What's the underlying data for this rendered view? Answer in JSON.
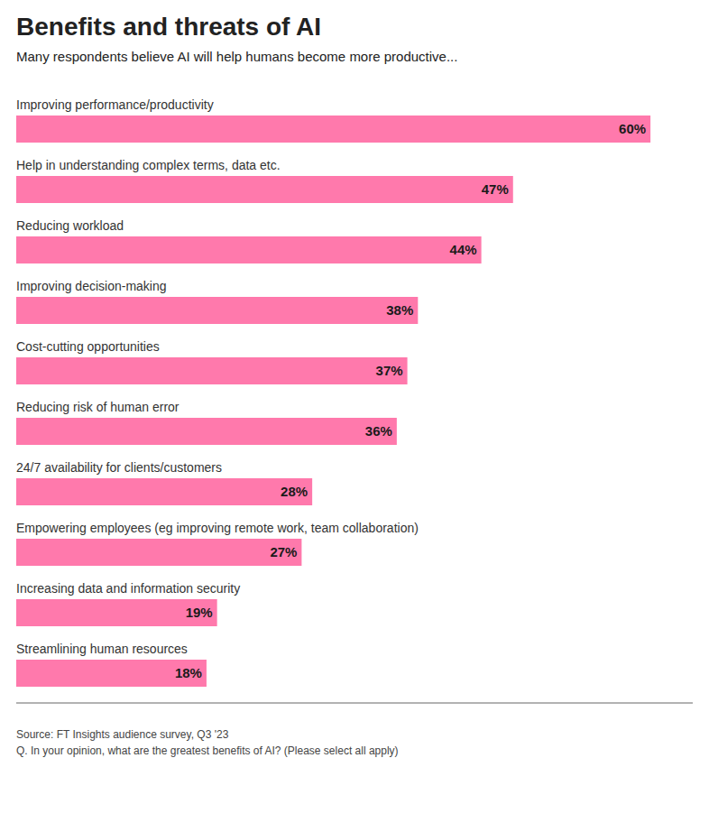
{
  "chart_data": {
    "type": "bar",
    "orientation": "horizontal",
    "title": "Benefits and threats of AI",
    "subtitle": "Many respondents believe AI will help humans become more productive...",
    "categories": [
      "Improving performance/productivity",
      "Help in understanding complex terms, data etc.",
      "Reducing workload",
      "Improving decision-making",
      "Cost-cutting opportunities",
      "Reducing risk of human error",
      "24/7 availability for clients/customers",
      "Empowering employees (eg improving remote work, team collaboration)",
      "Increasing data and information security",
      "Streamlining human resources"
    ],
    "values": [
      60,
      47,
      44,
      38,
      37,
      36,
      28,
      27,
      19,
      18
    ],
    "value_labels": [
      "60%",
      "47%",
      "44%",
      "38%",
      "37%",
      "36%",
      "28%",
      "27%",
      "19%",
      "18%"
    ],
    "data_labels": true,
    "color": "#FF79AC",
    "xlim": [
      0,
      64
    ],
    "grid": false,
    "tick_labels": false,
    "annotations": [
      "Source: FT Insights audience survey, Q3 '23",
      "Q. In your opinion, what are the greatest benefits of AI? (Please select all apply)"
    ]
  }
}
